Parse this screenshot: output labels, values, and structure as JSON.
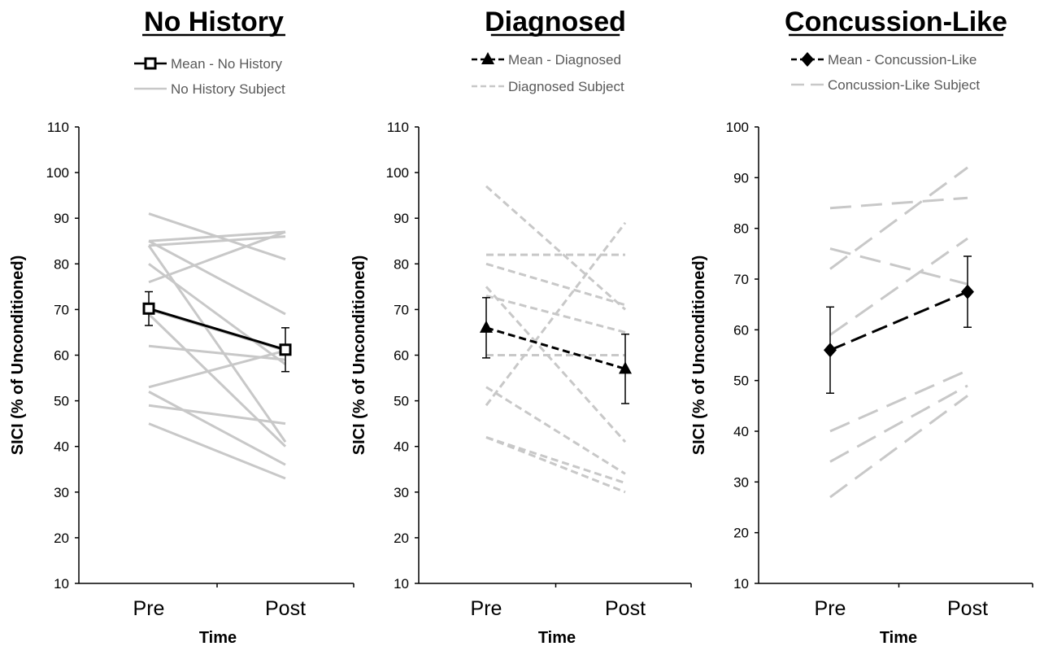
{
  "chart_data": [
    {
      "type": "line",
      "title": "No History",
      "xlabel": "Time",
      "ylabel": "SICI (% of Unconditioned)",
      "categories": [
        "Pre",
        "Post"
      ],
      "ylim": [
        10,
        110
      ],
      "yticks": [
        10,
        20,
        30,
        40,
        50,
        60,
        70,
        80,
        90,
        100,
        110
      ],
      "mean_series": {
        "name": "Mean - No History",
        "marker": "square",
        "line_style": "solid",
        "color": "#000000",
        "values": [
          70.2,
          61.2
        ],
        "error": [
          3.7,
          4.8
        ]
      },
      "subject_series": {
        "name": "No History Subject",
        "line_style": "solid",
        "color": "#c8c8c8",
        "values": [
          [
            91,
            81
          ],
          [
            85,
            87
          ],
          [
            85,
            69
          ],
          [
            84,
            86
          ],
          [
            84,
            41
          ],
          [
            80,
            58
          ],
          [
            76,
            87
          ],
          [
            70,
            61
          ],
          [
            62,
            59
          ],
          [
            53,
            61
          ],
          [
            52,
            36
          ],
          [
            49,
            45
          ],
          [
            45,
            33
          ],
          [
            69,
            40
          ]
        ]
      }
    },
    {
      "type": "line",
      "title": "Diagnosed",
      "xlabel": "Time",
      "ylabel": "SICI (% of Unconditioned)",
      "categories": [
        "Pre",
        "Post"
      ],
      "ylim": [
        10,
        110
      ],
      "yticks": [
        10,
        20,
        30,
        40,
        50,
        60,
        70,
        80,
        90,
        100,
        110
      ],
      "mean_series": {
        "name": "Mean - Diagnosed",
        "marker": "triangle",
        "line_style": "dashed",
        "color": "#000000",
        "values": [
          66,
          57
        ],
        "error": [
          6.6,
          7.6
        ]
      },
      "subject_series": {
        "name": "Diagnosed Subject",
        "line_style": "dashed",
        "color": "#c8c8c8",
        "values": [
          [
            97,
            70
          ],
          [
            82,
            82
          ],
          [
            80,
            71
          ],
          [
            75,
            41
          ],
          [
            73,
            65
          ],
          [
            53,
            34
          ],
          [
            49,
            89
          ],
          [
            42,
            32
          ],
          [
            42,
            30
          ],
          [
            60,
            60
          ]
        ]
      }
    },
    {
      "type": "line",
      "title": "Concussion-Like",
      "xlabel": "Time",
      "ylabel": "SICI (% of Unconditioned)",
      "categories": [
        "Pre",
        "Post"
      ],
      "ylim": [
        10,
        100
      ],
      "yticks": [
        10,
        20,
        30,
        40,
        50,
        60,
        70,
        80,
        90,
        100
      ],
      "mean_series": {
        "name": "Mean - Concussion-Like",
        "marker": "diamond",
        "line_style": "dashed",
        "color": "#000000",
        "values": [
          56,
          67.5
        ],
        "error": [
          8.5,
          7
        ]
      },
      "subject_series": {
        "name": "Concussion-Like Subject",
        "line_style": "long-dashed",
        "color": "#c8c8c8",
        "values": [
          [
            84,
            86
          ],
          [
            76,
            69
          ],
          [
            72,
            92
          ],
          [
            59,
            78
          ],
          [
            40,
            52
          ],
          [
            34,
            49
          ],
          [
            27,
            47
          ]
        ]
      }
    }
  ]
}
